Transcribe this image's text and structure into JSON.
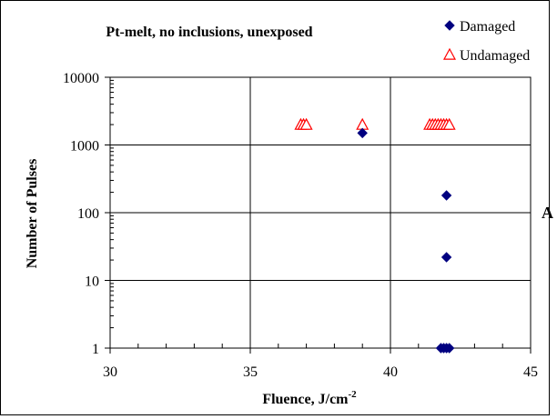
{
  "chart_data": {
    "type": "scatter",
    "title": "Pt-melt, no inclusions, unexposed",
    "xlabel": "Fluence, J/cm",
    "xlabel_superscript": "-2",
    "ylabel": "Number of Pulses",
    "side_label": "A",
    "x_axis": {
      "range": [
        30,
        45
      ],
      "ticks": [
        "30",
        "35",
        "40",
        "45"
      ],
      "minor_step": 1,
      "scale": "linear"
    },
    "y_axis": {
      "range": [
        1,
        10000
      ],
      "ticks": [
        "1",
        "10",
        "100",
        "1000",
        "10000"
      ],
      "scale": "log"
    },
    "grid": true,
    "legend_position": "top-right",
    "series": [
      {
        "name": "Damaged",
        "marker": "filled-diamond",
        "color": "#000080",
        "points": [
          {
            "x": 39.0,
            "y": 1500
          },
          {
            "x": 42.0,
            "y": 180
          },
          {
            "x": 42.0,
            "y": 22
          },
          {
            "x": 41.8,
            "y": 1
          },
          {
            "x": 41.9,
            "y": 1
          },
          {
            "x": 42.0,
            "y": 1
          },
          {
            "x": 42.1,
            "y": 1
          }
        ]
      },
      {
        "name": "Undamaged",
        "marker": "open-triangle",
        "color": "#ff0000",
        "points": [
          {
            "x": 36.8,
            "y": 2000
          },
          {
            "x": 36.9,
            "y": 2000
          },
          {
            "x": 37.0,
            "y": 2000
          },
          {
            "x": 39.0,
            "y": 2000
          },
          {
            "x": 41.4,
            "y": 2000
          },
          {
            "x": 41.5,
            "y": 2000
          },
          {
            "x": 41.6,
            "y": 2000
          },
          {
            "x": 41.7,
            "y": 2000
          },
          {
            "x": 41.8,
            "y": 2000
          },
          {
            "x": 41.9,
            "y": 2000
          },
          {
            "x": 42.0,
            "y": 2000
          },
          {
            "x": 42.1,
            "y": 2000
          }
        ]
      }
    ]
  }
}
